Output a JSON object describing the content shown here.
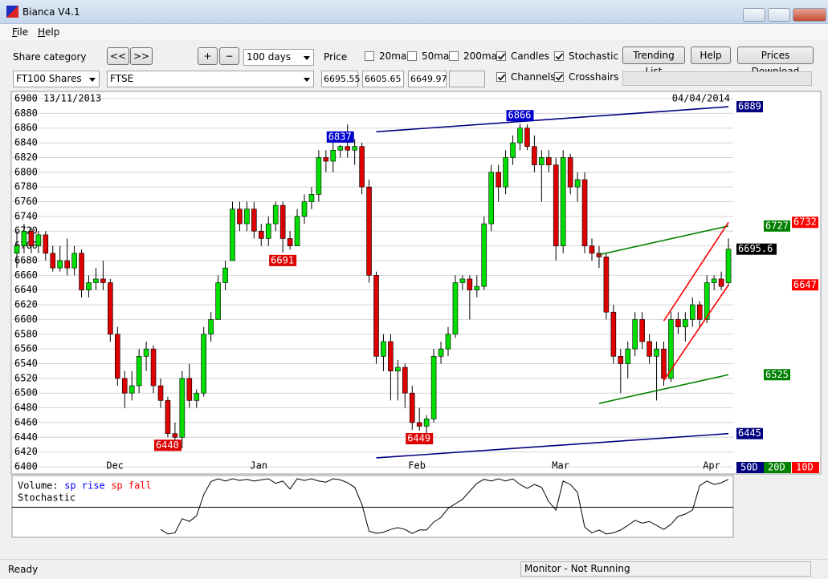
{
  "window": {
    "title": "Bianca V4.1"
  },
  "menu": [
    "File",
    "Help"
  ],
  "toolbar": {
    "share_category_label": "Share category",
    "nav_buttons": [
      "<<",
      ">>"
    ],
    "zoom_buttons": [
      "+",
      "−"
    ],
    "period": "100 days",
    "price_label": "Price",
    "checks": [
      {
        "label": "20ma",
        "checked": false
      },
      {
        "label": "50ma",
        "checked": false
      },
      {
        "label": "200ma",
        "checked": false
      },
      {
        "label": "Candles",
        "checked": true
      },
      {
        "label": "Stochastic",
        "checked": true
      },
      {
        "label": "Channels",
        "checked": true
      },
      {
        "label": "Crosshairs",
        "checked": true
      }
    ],
    "buttons": [
      "Trending List",
      "Help",
      "Prices Download"
    ],
    "category": "FT100 Shares",
    "share": "FTSE",
    "fields": [
      "6695.55",
      "6605.65",
      "6649.97"
    ]
  },
  "chart_data": {
    "type": "candlestick",
    "start_date": "13/11/2013",
    "end_date": "04/04/2014",
    "categories": [
      null,
      null,
      null,
      null,
      null,
      null,
      null,
      null,
      null,
      null,
      null,
      null,
      null,
      "Dec",
      null,
      null,
      null,
      null,
      null,
      null,
      null,
      null,
      null,
      null,
      null,
      null,
      null,
      null,
      null,
      null,
      null,
      null,
      null,
      "Jan",
      null,
      null,
      null,
      null,
      null,
      null,
      null,
      null,
      null,
      null,
      null,
      null,
      null,
      null,
      null,
      null,
      null,
      null,
      null,
      null,
      null,
      "Feb",
      null,
      null,
      null,
      null,
      null,
      null,
      null,
      null,
      null,
      null,
      null,
      null,
      null,
      null,
      null,
      null,
      null,
      null,
      null,
      "Mar",
      null,
      null,
      null,
      null,
      null,
      null,
      null,
      null,
      null,
      null,
      null,
      null,
      null,
      null,
      null,
      null,
      null,
      null,
      null,
      null,
      "Apr",
      null,
      null,
      null
    ],
    "open": [
      6690,
      6700,
      6720,
      6700,
      6715,
      6690,
      6670,
      6680,
      6670,
      6690,
      6640,
      6650,
      6655,
      6650,
      6580,
      6520,
      6500,
      6510,
      6550,
      6560,
      6510,
      6490,
      6445,
      6440,
      6520,
      6490,
      6500,
      6580,
      6600,
      6650,
      6680,
      6750,
      6730,
      6750,
      6720,
      6710,
      6730,
      6755,
      6710,
      6700,
      6740,
      6760,
      6770,
      6820,
      6815,
      6830,
      6835,
      6830,
      6835,
      6780,
      6660,
      6550,
      6570,
      6530,
      6535,
      6500,
      6460,
      6455,
      6465,
      6550,
      6560,
      6580,
      6650,
      6655,
      6640,
      6645,
      6730,
      6800,
      6780,
      6820,
      6840,
      6860,
      6835,
      6810,
      6820,
      6810,
      6700,
      6820,
      6780,
      6790,
      6700,
      6690,
      6685,
      6610,
      6550,
      6540,
      6560,
      6600,
      6570,
      6550,
      6560,
      6520,
      6600,
      6590,
      6600,
      6620,
      6600,
      6650,
      6655,
      6650
    ],
    "high": [
      6720,
      6730,
      6725,
      6720,
      6720,
      6700,
      6700,
      6710,
      6700,
      6695,
      6660,
      6670,
      6680,
      6655,
      6590,
      6530,
      6530,
      6560,
      6570,
      6565,
      6520,
      6495,
      6460,
      6530,
      6540,
      6505,
      6590,
      6610,
      6660,
      6680,
      6760,
      6760,
      6760,
      6760,
      6730,
      6740,
      6760,
      6760,
      6720,
      6750,
      6770,
      6780,
      6830,
      6830,
      6840,
      6837,
      6865,
      6845,
      6840,
      6790,
      6665,
      6580,
      6580,
      6545,
      6540,
      6510,
      6480,
      6470,
      6560,
      6570,
      6590,
      6660,
      6660,
      6660,
      6660,
      6740,
      6810,
      6810,
      6830,
      6850,
      6866,
      6865,
      6850,
      6830,
      6830,
      6820,
      6830,
      6825,
      6800,
      6800,
      6710,
      6700,
      6690,
      6620,
      6560,
      6570,
      6610,
      6610,
      6580,
      6570,
      6570,
      6610,
      6610,
      6610,
      6630,
      6625,
      6660,
      6660,
      6665,
      6710
    ],
    "low": [
      6670,
      6690,
      6690,
      6690,
      6680,
      6665,
      6665,
      6660,
      6660,
      6630,
      6630,
      6640,
      6640,
      6570,
      6510,
      6480,
      6490,
      6500,
      6530,
      6500,
      6480,
      6440,
      6436,
      6425,
      6480,
      6480,
      6495,
      6570,
      6600,
      6640,
      6680,
      6720,
      6720,
      6710,
      6700,
      6700,
      6720,
      6691,
      6695,
      6700,
      6730,
      6750,
      6760,
      6800,
      6800,
      6820,
      6820,
      6810,
      6770,
      6650,
      6540,
      6530,
      6490,
      6490,
      6480,
      6450,
      6449,
      6430,
      6460,
      6540,
      6550,
      6575,
      6640,
      6600,
      6630,
      6640,
      6720,
      6760,
      6770,
      6810,
      6830,
      6830,
      6800,
      6760,
      6800,
      6680,
      6690,
      6770,
      6760,
      6690,
      6680,
      6670,
      6600,
      6540,
      6500,
      6520,
      6550,
      6560,
      6540,
      6490,
      6510,
      6515,
      6580,
      6570,
      6590,
      6590,
      6595,
      6640,
      6640,
      6645
    ],
    "close": [
      6700,
      6720,
      6700,
      6715,
      6690,
      6670,
      6680,
      6670,
      6690,
      6640,
      6650,
      6655,
      6650,
      6580,
      6520,
      6500,
      6510,
      6550,
      6560,
      6510,
      6490,
      6445,
      6440,
      6520,
      6490,
      6500,
      6580,
      6600,
      6650,
      6670,
      6750,
      6730,
      6750,
      6720,
      6710,
      6730,
      6755,
      6710,
      6700,
      6740,
      6760,
      6770,
      6820,
      6815,
      6830,
      6835,
      6830,
      6835,
      6780,
      6660,
      6550,
      6570,
      6530,
      6535,
      6500,
      6460,
      6455,
      6465,
      6550,
      6560,
      6580,
      6650,
      6655,
      6640,
      6645,
      6730,
      6800,
      6780,
      6820,
      6840,
      6860,
      6835,
      6810,
      6820,
      6810,
      6700,
      6820,
      6780,
      6790,
      6700,
      6690,
      6685,
      6610,
      6550,
      6540,
      6560,
      6600,
      6570,
      6550,
      6560,
      6520,
      6600,
      6590,
      6600,
      6620,
      6600,
      6650,
      6655,
      6645,
      6695.55
    ],
    "up_color": "#00dd00",
    "down_color": "#dd0000",
    "price_tag": "6695.6",
    "ylim": [
      6400,
      6900
    ],
    "yticks": [
      6400,
      6420,
      6440,
      6460,
      6480,
      6500,
      6520,
      6540,
      6560,
      6580,
      6600,
      6620,
      6640,
      6660,
      6680,
      6700,
      6720,
      6740,
      6760,
      6780,
      6800,
      6820,
      6840,
      6860,
      6880,
      6900
    ],
    "grid": true,
    "annotations": [
      {
        "value": 6440,
        "x": 21,
        "color": "#dd0000"
      },
      {
        "value": 6691,
        "x": 37,
        "color": "#dd0000"
      },
      {
        "value": 6837,
        "x": 45,
        "color": "#0000cc"
      },
      {
        "value": 6449,
        "x": 56,
        "color": "#dd0000"
      },
      {
        "value": 6866,
        "x": 70,
        "color": "#0000cc"
      }
    ],
    "channels": [
      {
        "name": "50D",
        "color": "#000080",
        "x": [
          50,
          99
        ],
        "upper": [
          6855,
          6889
        ],
        "lower": [
          6412,
          6445
        ]
      },
      {
        "name": "20D",
        "color": "#008000",
        "x": [
          81,
          99
        ],
        "upper": [
          6688,
          6727
        ],
        "lower": [
          6486,
          6525
        ]
      },
      {
        "name": "10D",
        "color": "#ff0000",
        "x": [
          90,
          99
        ],
        "upper": [
          6598,
          6732
        ],
        "lower": [
          6517,
          6647
        ]
      }
    ]
  },
  "stochastic": {
    "type": "line",
    "legend": [
      {
        "text": "Volume:",
        "color": "#000000"
      },
      {
        "text": "sp rise",
        "color": "#0000ff"
      },
      {
        "text": "sp fall",
        "color": "#ff0000"
      }
    ],
    "title": "Stochastic",
    "ylim": [
      0,
      100
    ],
    "level": 50,
    "values": [
      null,
      null,
      null,
      null,
      null,
      null,
      null,
      null,
      null,
      null,
      null,
      null,
      null,
      null,
      null,
      null,
      null,
      null,
      null,
      null,
      11,
      3,
      5,
      30,
      25,
      35,
      72,
      95,
      100,
      96,
      100,
      97,
      99,
      96,
      98,
      100,
      92,
      96,
      82,
      100,
      97,
      100,
      96,
      94,
      100,
      98,
      93,
      85,
      55,
      8,
      4,
      6,
      11,
      14,
      11,
      4,
      10,
      10,
      24,
      32,
      48,
      56,
      64,
      78,
      92,
      99,
      96,
      100,
      96,
      100,
      90,
      83,
      90,
      85,
      60,
      45,
      96,
      90,
      76,
      15,
      5,
      10,
      3,
      5,
      10,
      18,
      27,
      22,
      25,
      18,
      11,
      20,
      34,
      38,
      45,
      88,
      96,
      90,
      93,
      99
    ]
  },
  "status": {
    "left": "Ready",
    "right": "Monitor - Not Running"
  }
}
